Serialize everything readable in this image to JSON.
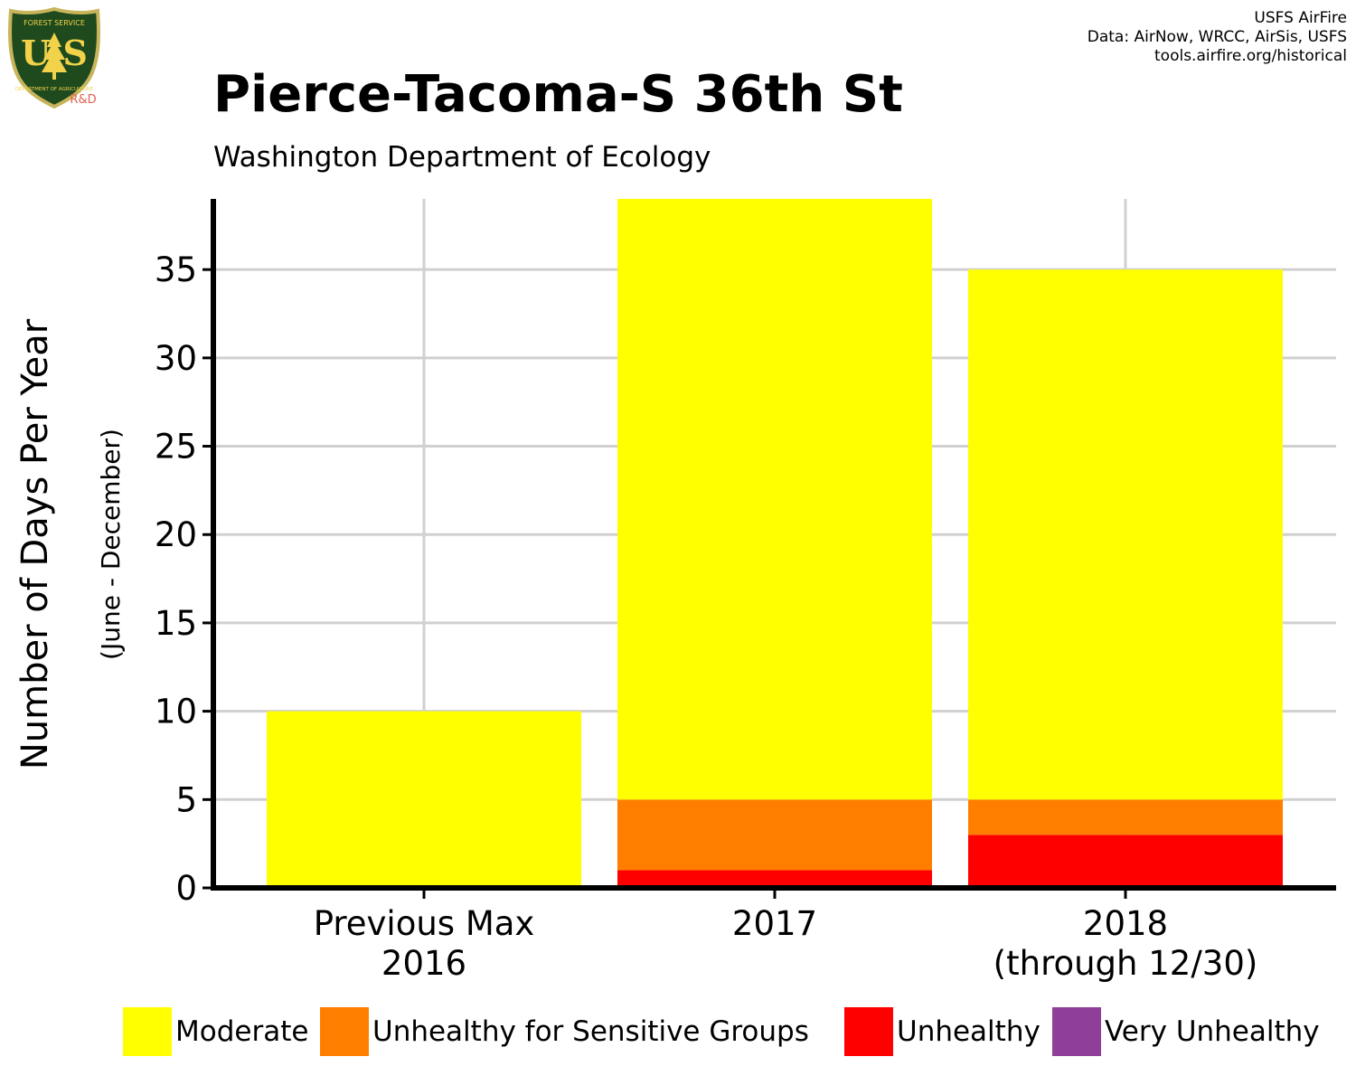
{
  "logo": {
    "icon": "usfs-shield-icon",
    "top_text": "FOREST SERVICE",
    "letters": "U S",
    "bottom_text": "DEPARTMENT OF AGRICULTURE",
    "tag": "R&D",
    "colors": {
      "shield_fill": "#1e4a1e",
      "shield_border": "#c8b45a",
      "letters": "#f2d24a",
      "tag": "#e06050"
    }
  },
  "credits": {
    "line1": "USFS AirFire",
    "line2": "Data: AirNow, WRCC, AirSis, USFS",
    "line3": "tools.airfire.org/historical"
  },
  "chart_data": {
    "type": "bar",
    "stacked": true,
    "title": "Pierce-Tacoma-S 36th St",
    "subtitle": "Washington Department of Ecology",
    "ylabel": "Number of Days Per Year",
    "ylabel_sub": "(June - December)",
    "xlabel": "",
    "categories": [
      [
        "Previous Max",
        "2016"
      ],
      [
        "2017"
      ],
      [
        "2018",
        "(through 12/30)"
      ]
    ],
    "ylim": [
      0,
      39
    ],
    "yticks": [
      0,
      5,
      10,
      15,
      20,
      25,
      30,
      35
    ],
    "grid": true,
    "legend_position": "bottom",
    "series": [
      {
        "name": "Unhealthy",
        "color": "#ff0000",
        "values": [
          0,
          1,
          3
        ]
      },
      {
        "name": "Unhealthy for Sensitive Groups",
        "color": "#ff7e00",
        "values": [
          0,
          4,
          2
        ]
      },
      {
        "name": "Moderate",
        "color": "#ffff00",
        "values": [
          10,
          34,
          30
        ]
      }
    ],
    "legend": [
      {
        "name": "Moderate",
        "color": "#ffff00"
      },
      {
        "name": "Unhealthy for Sensitive Groups",
        "color": "#ff7e00"
      },
      {
        "name": "Unhealthy",
        "color": "#ff0000"
      },
      {
        "name": "Very Unhealthy",
        "color": "#8f3f97"
      }
    ]
  }
}
